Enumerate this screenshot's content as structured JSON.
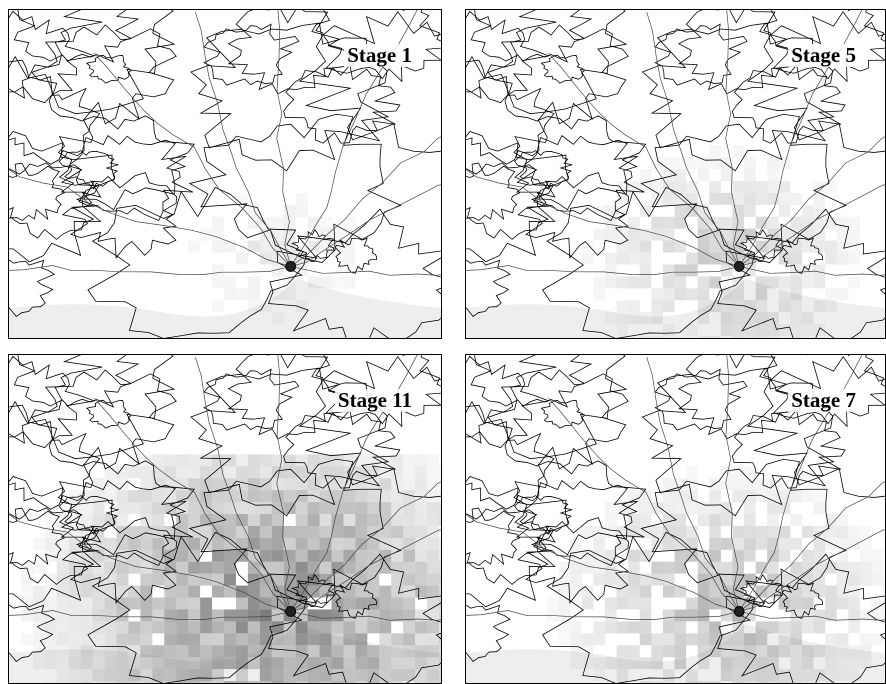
{
  "panels": [
    {
      "label": "Stage 1",
      "intensity": 0.25
    },
    {
      "label": "Stage 5",
      "intensity": 0.5
    },
    {
      "label": "Stage 11",
      "intensity": 1.0
    },
    {
      "label": "Stage 7",
      "intensity": 0.65
    }
  ],
  "colors": {
    "contour": "#000000",
    "sea": "#eeeeee",
    "shading": "#555555",
    "marker": "#222222"
  }
}
